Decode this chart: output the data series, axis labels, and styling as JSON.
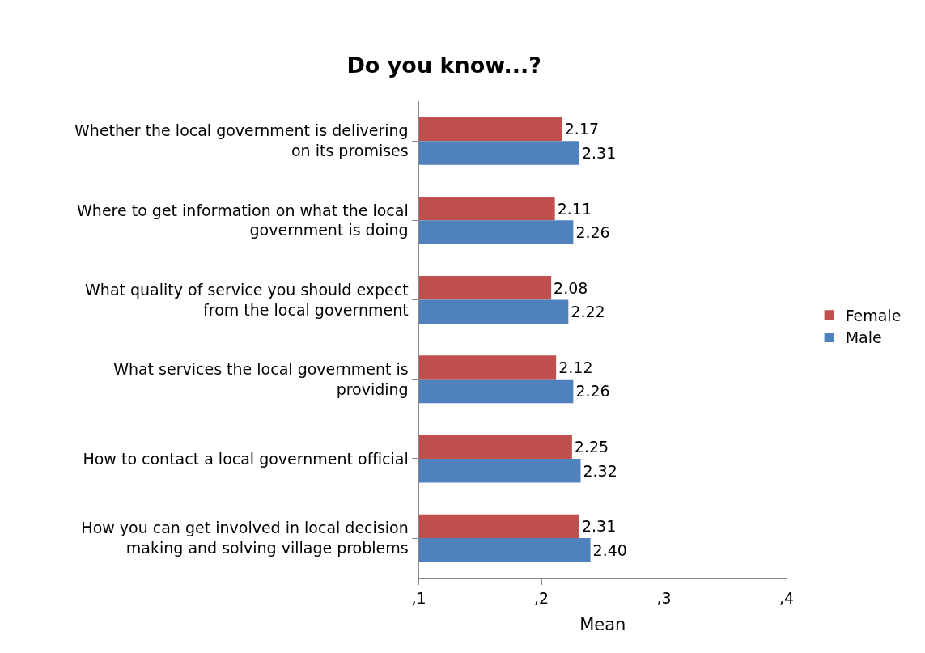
{
  "chart_data": {
    "type": "bar",
    "orientation": "horizontal",
    "title": "Do you know...?",
    "xlabel": "Mean",
    "categories": [
      "Whether the local government is delivering on its promises",
      "Where to get information on what the local government is doing",
      "What quality of service you should expect from the local government",
      "What services the local government is providing",
      "How to contact a local government official",
      "How you can get involved in local decision making and solving village problems"
    ],
    "series": [
      {
        "name": "Female",
        "color": "#c0504d",
        "values": [
          2.17,
          2.11,
          2.08,
          2.12,
          2.25,
          2.31
        ],
        "value_labels": [
          "2.17",
          "2.11",
          "2.08",
          "2.12",
          "2.25",
          "2.31"
        ]
      },
      {
        "name": "Male",
        "color": "#4f81bd",
        "values": [
          2.31,
          2.26,
          2.22,
          2.26,
          2.32,
          2.4
        ],
        "value_labels": [
          "2.31",
          "2.26",
          "2.22",
          "2.26",
          "2.32",
          "2.40"
        ]
      }
    ],
    "xlim": [
      1,
      4
    ],
    "xticks": [
      {
        "value": 1,
        "label": ",1"
      },
      {
        "value": 2,
        "label": ",2"
      },
      {
        "value": 3,
        "label": ",3"
      },
      {
        "value": 4,
        "label": ",4"
      }
    ],
    "legend": "right"
  }
}
